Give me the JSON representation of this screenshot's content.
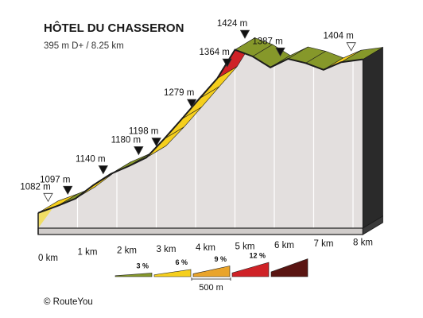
{
  "chart_data": {
    "type": "area",
    "title": "HÔTEL DU CHASSERON",
    "subtitle": "395 m D+ / 8.25 km",
    "x_unit": "km",
    "y_unit": "m",
    "x_ticks": [
      "0 km",
      "1 km",
      "2 km",
      "3 km",
      "4 km",
      "5 km",
      "6 km",
      "7 km",
      "8 km"
    ],
    "profile": [
      {
        "km": 0.0,
        "elev": 1082,
        "grade_class": "6"
      },
      {
        "km": 0.5,
        "elev": 1097,
        "grade_class": "3"
      },
      {
        "km": 0.95,
        "elev": 1112,
        "grade_class": "6"
      },
      {
        "km": 1.4,
        "elev": 1140,
        "grade_class": "6"
      },
      {
        "km": 1.85,
        "elev": 1164,
        "grade_class": "3"
      },
      {
        "km": 2.3,
        "elev": 1180,
        "grade_class": "3"
      },
      {
        "km": 2.75,
        "elev": 1198,
        "grade_class": "6"
      },
      {
        "km": 3.2,
        "elev": 1237,
        "grade_class": "6"
      },
      {
        "km": 3.65,
        "elev": 1279,
        "grade_class": "6"
      },
      {
        "km": 4.1,
        "elev": 1322,
        "grade_class": "6"
      },
      {
        "km": 4.55,
        "elev": 1364,
        "grade_class": "12"
      },
      {
        "km": 5.0,
        "elev": 1424,
        "grade_class": "3"
      },
      {
        "km": 5.45,
        "elev": 1410,
        "grade_class": "-"
      },
      {
        "km": 5.9,
        "elev": 1387,
        "grade_class": "3"
      },
      {
        "km": 6.35,
        "elev": 1405,
        "grade_class": "3"
      },
      {
        "km": 6.8,
        "elev": 1396,
        "grade_class": "3"
      },
      {
        "km": 7.25,
        "elev": 1382,
        "grade_class": "6"
      },
      {
        "km": 7.7,
        "elev": 1398,
        "grade_class": "3"
      },
      {
        "km": 8.25,
        "elev": 1404,
        "grade_class": null
      }
    ],
    "elevation_labels": [
      {
        "km": 0.0,
        "text": "1082 m",
        "marker": "open"
      },
      {
        "km": 0.5,
        "text": "1097 m",
        "marker": "filled"
      },
      {
        "km": 1.4,
        "text": "1140 m",
        "marker": "filled"
      },
      {
        "km": 2.3,
        "text": "1180 m",
        "marker": "filled"
      },
      {
        "km": 2.75,
        "text": "1198 m",
        "marker": "filled"
      },
      {
        "km": 3.65,
        "text": "1279 m",
        "marker": "filled"
      },
      {
        "km": 4.55,
        "text": "1364 m",
        "marker": "filled"
      },
      {
        "km": 5.0,
        "text": "1424 m",
        "marker": "filled"
      },
      {
        "km": 5.9,
        "text": "1387 m",
        "marker": "filled"
      },
      {
        "km": 7.7,
        "text": "1404 m",
        "marker": "open"
      }
    ],
    "legend": {
      "entries": [
        {
          "label": "3 %",
          "class": "3",
          "color": "#86982a"
        },
        {
          "label": "6 %",
          "class": "6",
          "color": "#f5cf1d"
        },
        {
          "label": "9 %",
          "class": "9",
          "color": "#e9a42b"
        },
        {
          "label": "12 %",
          "class": "12",
          "color": "#cf2227"
        },
        {
          "label": "",
          "class": "15",
          "color": "#5a1512"
        }
      ],
      "scale_label": "500 m"
    },
    "colors": {
      "3": "#86982a",
      "6": "#f5cf1d",
      "9": "#e9a42b",
      "12": "#cf2227",
      "15": "#5a1512",
      "-": "#86982a",
      "side": "#e3dfde",
      "base": "#d0ccca",
      "edge": "#1c1c1c"
    }
  },
  "copyright": "©  RouteYou"
}
